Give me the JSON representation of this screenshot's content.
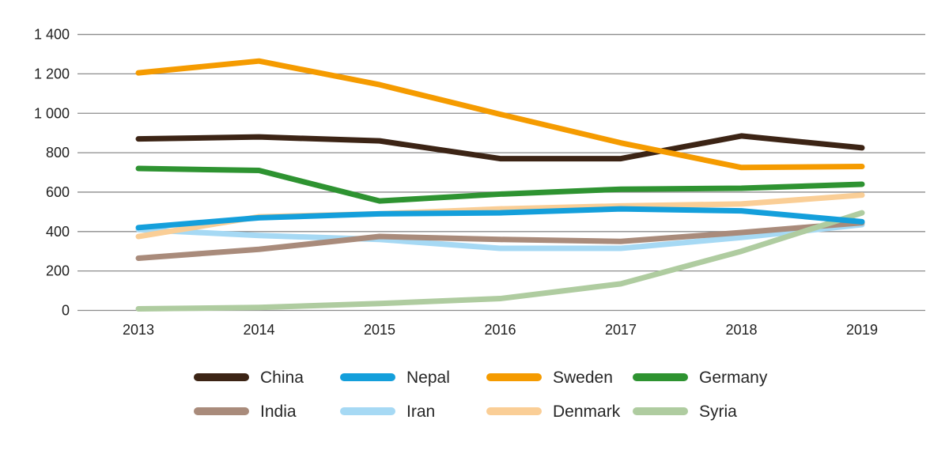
{
  "chart_data": {
    "type": "line",
    "title": "",
    "xlabel": "",
    "ylabel": "",
    "ylim": [
      0,
      1400
    ],
    "grid": "horizontal",
    "legend_position": "bottom",
    "x_labels": [
      "2013",
      "2014",
      "2015",
      "2016",
      "2017",
      "2018",
      "2019"
    ],
    "y_ticks": [
      {
        "value": 0,
        "label": "0"
      },
      {
        "value": 200,
        "label": "200"
      },
      {
        "value": 400,
        "label": "400"
      },
      {
        "value": 600,
        "label": "600"
      },
      {
        "value": 800,
        "label": "800"
      },
      {
        "value": 1000,
        "label": "1 000"
      },
      {
        "value": 1200,
        "label": "1 200"
      },
      {
        "value": 1400,
        "label": "1 400"
      }
    ],
    "series": [
      {
        "name": "China",
        "color": "#3C2415",
        "values": [
          870,
          880,
          860,
          770,
          770,
          885,
          825
        ]
      },
      {
        "name": "Nepal",
        "color": "#149FDB",
        "values": [
          420,
          470,
          490,
          495,
          515,
          505,
          450
        ]
      },
      {
        "name": "Sweden",
        "color": "#F59B00",
        "values": [
          1205,
          1265,
          1145,
          995,
          850,
          725,
          730
        ]
      },
      {
        "name": "Germany",
        "color": "#2E9331",
        "values": [
          720,
          710,
          555,
          590,
          615,
          620,
          640
        ]
      },
      {
        "name": "India",
        "color": "#A98B7B",
        "values": [
          265,
          310,
          375,
          360,
          350,
          395,
          445
        ]
      },
      {
        "name": "Iran",
        "color": "#A6D9F4",
        "values": [
          410,
          380,
          360,
          315,
          315,
          370,
          435
        ]
      },
      {
        "name": "Denmark",
        "color": "#FACE96",
        "values": [
          375,
          475,
          490,
          515,
          530,
          540,
          585
        ]
      },
      {
        "name": "Syria",
        "color": "#AFCCA0",
        "values": [
          8,
          15,
          35,
          60,
          135,
          300,
          495
        ]
      }
    ],
    "draw_order": [
      "Iran",
      "India",
      "Denmark",
      "Syria",
      "Nepal",
      "Germany",
      "China",
      "Sweden"
    ],
    "gridline_color": "#8C8C8C"
  }
}
